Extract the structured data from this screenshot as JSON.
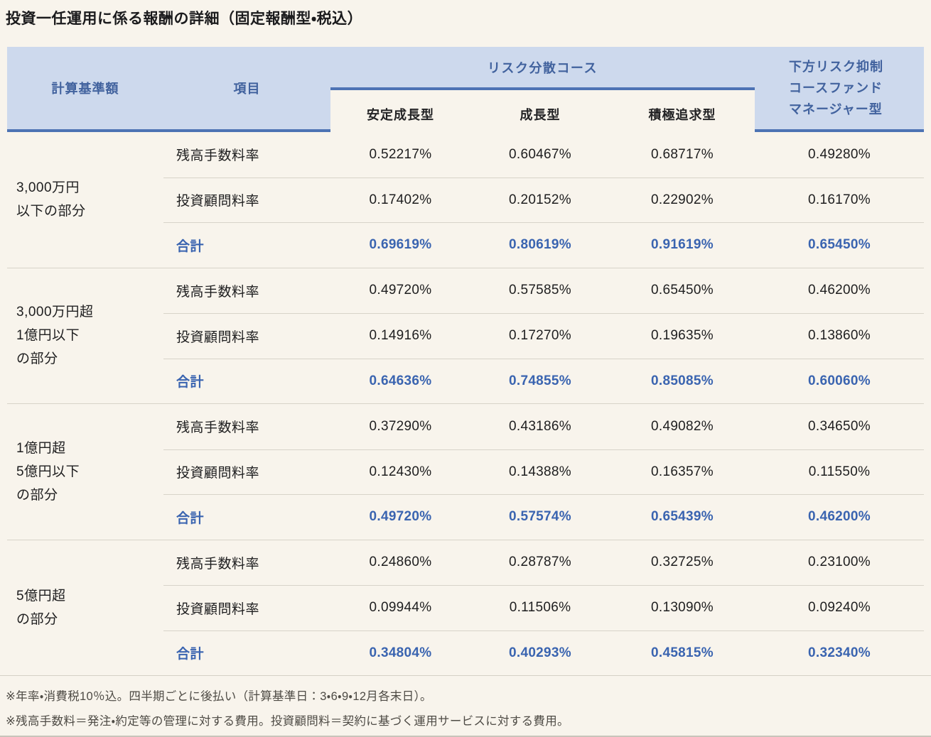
{
  "page": {
    "title": "投資一任運用に係る報酬の詳細（固定報酬型・税込）"
  },
  "colors": {
    "header_background": "#cdd9ed",
    "accent_border_blue": "#4d73b4",
    "header_text_blue": "#41629e",
    "total_text_blue": "#3a64b0",
    "body_background": "#f8f4ec",
    "body_text": "#1e1e1f",
    "footnote_text": "#4e4b45",
    "row_rule": "#d7d3c9"
  },
  "table": {
    "headers": {
      "col_base": "計算基準額",
      "col_item": "項目",
      "group": "リスク分散コース",
      "sub": [
        "安定成長型",
        "成長型",
        "積極追求型"
      ],
      "col_last_lines": [
        "下方リスク抑制",
        "コースファンド",
        "マネージャー型"
      ]
    },
    "groups": [
      {
        "label_lines": [
          "3,000万円",
          "以下の部分"
        ],
        "rows": [
          {
            "item": "残高手数料率",
            "total": false,
            "values": [
              "0.52217%",
              "0.60467%",
              "0.68717%",
              "0.49280%"
            ]
          },
          {
            "item": "投資顧問料率",
            "total": false,
            "values": [
              "0.17402%",
              "0.20152%",
              "0.22902%",
              "0.16170%"
            ]
          },
          {
            "item": "合計",
            "total": true,
            "values": [
              "0.69619%",
              "0.80619%",
              "0.91619%",
              "0.65450%"
            ]
          }
        ]
      },
      {
        "label_lines": [
          "3,000万円超",
          "1億円以下",
          "の部分"
        ],
        "rows": [
          {
            "item": "残高手数料率",
            "total": false,
            "values": [
              "0.49720%",
              "0.57585%",
              "0.65450%",
              "0.46200%"
            ]
          },
          {
            "item": "投資顧問料率",
            "total": false,
            "values": [
              "0.14916%",
              "0.17270%",
              "0.19635%",
              "0.13860%"
            ]
          },
          {
            "item": "合計",
            "total": true,
            "values": [
              "0.64636%",
              "0.74855%",
              "0.85085%",
              "0.60060%"
            ]
          }
        ]
      },
      {
        "label_lines": [
          "1億円超",
          "5億円以下",
          "の部分"
        ],
        "rows": [
          {
            "item": "残高手数料率",
            "total": false,
            "values": [
              "0.37290%",
              "0.43186%",
              "0.49082%",
              "0.34650%"
            ]
          },
          {
            "item": "投資顧問料率",
            "total": false,
            "values": [
              "0.12430%",
              "0.14388%",
              "0.16357%",
              "0.11550%"
            ]
          },
          {
            "item": "合計",
            "total": true,
            "values": [
              "0.49720%",
              "0.57574%",
              "0.65439%",
              "0.46200%"
            ]
          }
        ]
      },
      {
        "label_lines": [
          "5億円超",
          "の部分"
        ],
        "rows": [
          {
            "item": "残高手数料率",
            "total": false,
            "values": [
              "0.24860%",
              "0.28787%",
              "0.32725%",
              "0.23100%"
            ]
          },
          {
            "item": "投資顧問料率",
            "total": false,
            "values": [
              "0.09944%",
              "0.11506%",
              "0.13090%",
              "0.09240%"
            ]
          },
          {
            "item": "合計",
            "total": true,
            "values": [
              "0.34804%",
              "0.40293%",
              "0.45815%",
              "0.32340%"
            ]
          }
        ]
      }
    ],
    "footnotes": [
      "※年率・消費税10％込。四半期ごとに後払い（計算基準日：3・6・9・12月各末日）。",
      "※残高手数料＝発注・約定等の管理に対する費用。投資顧問料＝契約に基づく運用サービスに対する費用。"
    ]
  }
}
